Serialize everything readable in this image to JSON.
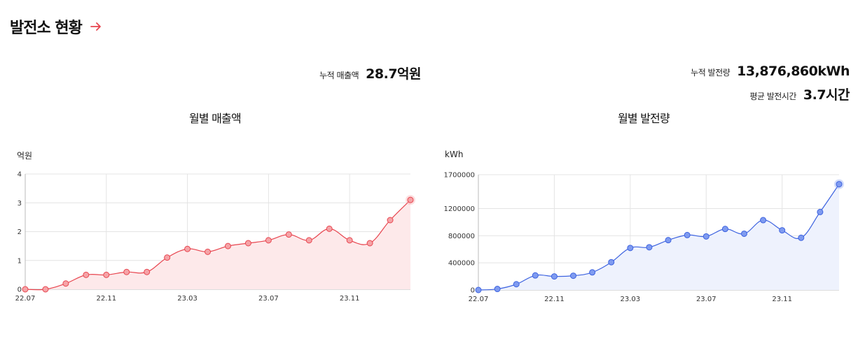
{
  "header": {
    "title": "발전소 현황"
  },
  "stats": {
    "revenue": {
      "label": "누적 매출액",
      "value": "28.7억원"
    },
    "generation": {
      "label": "누적 발전량",
      "value": "13,876,860kWh"
    },
    "hours": {
      "label": "평균 발전시간",
      "value": "3.7시간"
    }
  },
  "colors": {
    "revenue_line": "#e8454f",
    "revenue_fill": "#fde9ea",
    "revenue_point": "#f5a3a7",
    "generation_line": "#3d63e0",
    "generation_fill": "#eef2fd",
    "generation_point": "#7f9bf0",
    "grid": "#e4e4e4",
    "accent_arrow": "#e8454f"
  },
  "chart_data": [
    {
      "type": "area",
      "title": "월별 매출액",
      "ylabel": "억원",
      "ylim": [
        0,
        4
      ],
      "yticks": [
        "0",
        "1",
        "2",
        "3",
        "4"
      ],
      "xticks": [
        "22.07",
        "22.11",
        "23.03",
        "23.07",
        "23.11"
      ],
      "x": [
        "22.07",
        "22.08",
        "22.09",
        "22.10",
        "22.11",
        "22.12",
        "23.01",
        "23.02",
        "23.03",
        "23.04",
        "23.05",
        "23.06",
        "23.07",
        "23.08",
        "23.09",
        "23.10",
        "23.11",
        "23.12",
        "24.01",
        "24.02"
      ],
      "values": [
        0,
        0,
        0.2,
        0.5,
        0.5,
        0.6,
        0.6,
        1.1,
        1.4,
        1.3,
        1.5,
        1.6,
        1.7,
        1.9,
        1.7,
        2.1,
        1.7,
        1.6,
        2.4,
        3.1
      ]
    },
    {
      "type": "area",
      "title": "월별 발전량",
      "ylabel": "kWh",
      "ylim": [
        0,
        1700000
      ],
      "yticks": [
        "0",
        "400000",
        "800000",
        "1200000",
        "1700000"
      ],
      "xticks": [
        "22.07",
        "22.11",
        "23.03",
        "23.07",
        "23.11"
      ],
      "x": [
        "22.07",
        "22.08",
        "22.09",
        "22.10",
        "22.11",
        "22.12",
        "23.01",
        "23.02",
        "23.03",
        "23.04",
        "23.05",
        "23.06",
        "23.07",
        "23.08",
        "23.09",
        "23.10",
        "23.11",
        "23.12",
        "24.01",
        "24.02"
      ],
      "values": [
        0,
        15000,
        85000,
        215000,
        200000,
        210000,
        260000,
        410000,
        620000,
        630000,
        735000,
        810000,
        790000,
        900000,
        830000,
        1030000,
        880000,
        770000,
        1150000,
        1560000
      ]
    }
  ]
}
